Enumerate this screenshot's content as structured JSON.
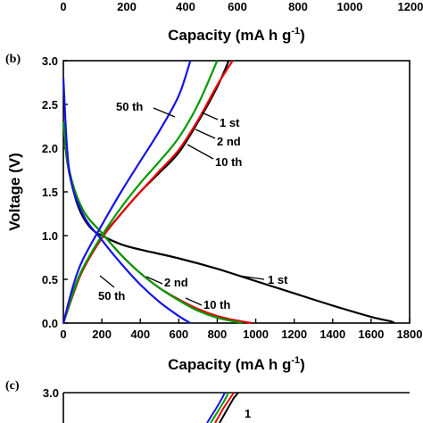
{
  "top_fragment": {
    "tick_labels": [
      "0",
      "200",
      "400",
      "600",
      "800",
      "1000",
      "1200"
    ],
    "xlabel": "Capacity (mA h g",
    "xlabel_sup": "-1",
    "xlabel_close": ")"
  },
  "panel_b": {
    "label": "(b)",
    "ylabel": "Voltage (V)",
    "xlabel": "Capacity (mA h g",
    "xlabel_sup": "-1",
    "xlabel_close": ")",
    "x_ticks": [
      "0",
      "200",
      "400",
      "600",
      "800",
      "1000",
      "1200",
      "1400",
      "1600",
      "1800"
    ],
    "y_ticks": [
      "0.0",
      "0.5",
      "1.0",
      "1.5",
      "2.0",
      "2.5",
      "3.0"
    ],
    "annotations": {
      "charge_50th": "50 th",
      "charge_1st": "1 st",
      "charge_2nd": "2 nd",
      "charge_10th": "10 th",
      "dis_1st": "1 st",
      "dis_2nd": "2 nd",
      "dis_10th": "10 th",
      "dis_50th": "50 th"
    }
  },
  "bottom_fragment": {
    "label": "(c)",
    "y_tick": "3.0"
  },
  "colors": {
    "cycle_1st": "#000000",
    "cycle_2nd": "#e8000b",
    "cycle_10th": "#009a00",
    "cycle_50th": "#1414e6"
  },
  "chart_data": {
    "type": "line",
    "title": "",
    "xlabel": "Capacity (mA h g-1)",
    "ylabel": "Voltage (V)",
    "xlim": [
      0,
      1800
    ],
    "ylim": [
      0,
      3.0
    ],
    "grid": false,
    "series": [
      {
        "name": "1 st",
        "branch": "discharge",
        "color": "#000000",
        "x": [
          0,
          20,
          60,
          100,
          150,
          200,
          300,
          400,
          600,
          800,
          1000,
          1200,
          1400,
          1600,
          1700,
          1720
        ],
        "y": [
          2.3,
          1.85,
          1.45,
          1.22,
          1.07,
          1.0,
          0.9,
          0.84,
          0.74,
          0.62,
          0.48,
          0.34,
          0.2,
          0.07,
          0.02,
          0.0
        ]
      },
      {
        "name": "1 st",
        "branch": "charge",
        "color": "#000000",
        "x": [
          0,
          50,
          100,
          200,
          300,
          400,
          500,
          600,
          700,
          800,
          860
        ],
        "y": [
          0.0,
          0.35,
          0.62,
          0.98,
          1.25,
          1.5,
          1.72,
          1.95,
          2.3,
          2.7,
          3.0
        ]
      },
      {
        "name": "2 nd",
        "branch": "discharge",
        "color": "#e8000b",
        "x": [
          0,
          30,
          100,
          200,
          300,
          400,
          500,
          600,
          700,
          800,
          900,
          980
        ],
        "y": [
          2.3,
          1.75,
          1.3,
          1.03,
          0.78,
          0.57,
          0.4,
          0.27,
          0.16,
          0.08,
          0.03,
          0.0
        ]
      },
      {
        "name": "2 nd",
        "branch": "charge",
        "color": "#e8000b",
        "x": [
          0,
          50,
          100,
          200,
          300,
          400,
          500,
          600,
          700,
          800,
          880
        ],
        "y": [
          0.0,
          0.32,
          0.6,
          0.97,
          1.25,
          1.5,
          1.74,
          1.98,
          2.32,
          2.72,
          3.0
        ]
      },
      {
        "name": "10 th",
        "branch": "discharge",
        "color": "#009a00",
        "x": [
          0,
          30,
          100,
          200,
          300,
          400,
          500,
          600,
          700,
          800,
          930
        ],
        "y": [
          2.3,
          1.75,
          1.3,
          1.03,
          0.78,
          0.57,
          0.4,
          0.26,
          0.14,
          0.06,
          0.0
        ]
      },
      {
        "name": "10 th",
        "branch": "charge",
        "color": "#009a00",
        "x": [
          0,
          50,
          100,
          200,
          300,
          400,
          500,
          600,
          700,
          800
        ],
        "y": [
          0.0,
          0.34,
          0.62,
          1.0,
          1.32,
          1.6,
          1.85,
          2.12,
          2.5,
          3.0
        ]
      },
      {
        "name": "50 th",
        "branch": "discharge",
        "color": "#1414e6",
        "x": [
          0,
          30,
          100,
          200,
          300,
          400,
          500,
          600,
          660
        ],
        "y": [
          2.8,
          1.75,
          1.25,
          0.95,
          0.68,
          0.44,
          0.24,
          0.08,
          0.0
        ]
      },
      {
        "name": "50 th",
        "branch": "charge",
        "color": "#1414e6",
        "x": [
          0,
          50,
          100,
          200,
          300,
          400,
          500,
          600,
          660
        ],
        "y": [
          0.0,
          0.42,
          0.72,
          1.12,
          1.5,
          1.85,
          2.2,
          2.6,
          3.0
        ]
      }
    ]
  }
}
